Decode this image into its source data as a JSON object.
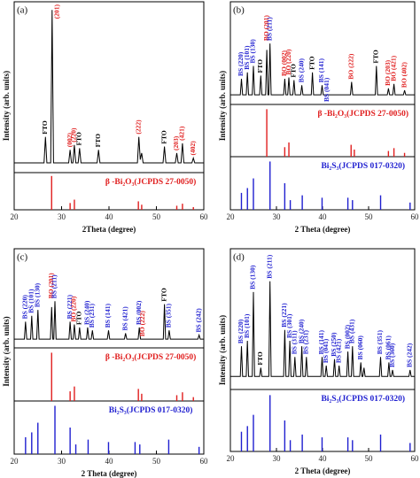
{
  "chart_data": [
    {
      "type": "line",
      "label": "(a)",
      "xlabel": "2Theta (degree)",
      "ylabel": "Intensity (arb. units)",
      "xlim": [
        20,
        60
      ],
      "xticks": [
        20,
        30,
        40,
        50,
        60
      ],
      "ylim": [
        0,
        105
      ],
      "color": "#000000",
      "x": [
        20,
        26.3,
        26.6,
        26.9,
        27.7,
        28.0,
        28.3,
        31.5,
        31.8,
        32.1,
        32.4,
        32.7,
        33.0,
        33.5,
        33.8,
        34.1,
        37.5,
        37.8,
        38.1,
        46.0,
        46.3,
        46.6,
        46.9,
        47.2,
        51.4,
        51.7,
        52.0,
        54.0,
        54.3,
        54.6,
        55.2,
        55.5,
        55.8,
        57.5,
        57.8,
        58.1,
        60
      ],
      "values": [
        6,
        6,
        22,
        6,
        6,
        100,
        6,
        6,
        14,
        6,
        6,
        17,
        6,
        6,
        15,
        6,
        6,
        14,
        6,
        6,
        22,
        8,
        12,
        6,
        6,
        16,
        6,
        6,
        12,
        6,
        6,
        18,
        6,
        6,
        9,
        6,
        6
      ],
      "annotations": [
        {
          "text": "FTO",
          "x": 26.6,
          "color": "#000000"
        },
        {
          "text": "(201)",
          "x": 28.0,
          "color": "#e01e1e"
        },
        {
          "text": "(002)",
          "x": 31.8,
          "color": "#e01e1e"
        },
        {
          "text": "(220)",
          "x": 32.7,
          "color": "#e01e1e"
        },
        {
          "text": "FTO",
          "x": 33.8,
          "color": "#000000"
        },
        {
          "text": "FTO",
          "x": 37.8,
          "color": "#000000"
        },
        {
          "text": "(222)",
          "x": 46.3,
          "color": "#e01e1e"
        },
        {
          "text": "FTO",
          "x": 51.7,
          "color": "#000000"
        },
        {
          "text": "(203)",
          "x": 54.3,
          "color": "#e01e1e"
        },
        {
          "text": "(421)",
          "x": 55.5,
          "color": "#e01e1e"
        },
        {
          "text": "(402)",
          "x": 57.8,
          "color": "#e01e1e"
        }
      ],
      "references": [
        {
          "label": "β -Bi₂O₃(JCPDS 27-0050)",
          "color": "#e01e1e",
          "ylim": [
            0,
            110
          ],
          "x": [
            27.9,
            31.8,
            32.7,
            46.2,
            46.9,
            54.3,
            55.5,
            57.8
          ],
          "values": [
            100,
            20,
            30,
            25,
            15,
            12,
            18,
            8
          ]
        }
      ]
    },
    {
      "type": "line",
      "label": "(b)",
      "xlabel": "2 Theta (degree)",
      "ylabel": "Intensity (arb. units)",
      "xlim": [
        20,
        60
      ],
      "xticks": [
        20,
        30,
        40,
        50,
        60
      ],
      "ylim": [
        0,
        160
      ],
      "color": "#000000",
      "x": [
        20,
        22.15,
        22.4,
        22.65,
        23.45,
        23.7,
        23.95,
        24.75,
        25.0,
        25.25,
        26.35,
        26.6,
        26.85,
        27.65,
        27.9,
        28.15,
        28.35,
        28.6,
        28.85,
        31.55,
        31.8,
        32.05,
        32.45,
        32.7,
        32.95,
        33.55,
        33.8,
        34.05,
        35.25,
        35.5,
        35.75,
        37.55,
        37.8,
        38.05,
        39.65,
        39.9,
        40.15,
        46.05,
        46.3,
        46.55,
        51.45,
        51.7,
        51.95,
        54.05,
        54.3,
        54.55,
        55.25,
        55.5,
        55.75,
        57.55,
        57.8,
        58.05,
        60
      ],
      "values": [
        15,
        15,
        40,
        15,
        15,
        50,
        15,
        15,
        60,
        15,
        15,
        45,
        15,
        15,
        85,
        15,
        15,
        95,
        15,
        15,
        40,
        15,
        15,
        42,
        15,
        15,
        38,
        15,
        15,
        30,
        15,
        15,
        50,
        15,
        15,
        30,
        15,
        15,
        35,
        15,
        15,
        60,
        15,
        15,
        25,
        15,
        15,
        32,
        15,
        15,
        22,
        15,
        15
      ],
      "annotations": [
        {
          "text": "BS (220)",
          "x": 22.4,
          "color": "#1f1fd0"
        },
        {
          "text": "BS (101)",
          "x": 23.7,
          "color": "#1f1fd0"
        },
        {
          "text": "BS (130)",
          "x": 25.0,
          "color": "#1f1fd0"
        },
        {
          "text": "FTO",
          "x": 26.6,
          "color": "#000000"
        },
        {
          "text": "BO (201)",
          "x": 27.9,
          "color": "#e01e1e"
        },
        {
          "text": "BS (211)",
          "x": 28.6,
          "color": "#1f1fd0"
        },
        {
          "text": "BO (002)",
          "x": 31.8,
          "color": "#e01e1e"
        },
        {
          "text": "BO (220)",
          "x": 32.7,
          "color": "#e01e1e"
        },
        {
          "text": "FTO",
          "x": 33.8,
          "color": "#000000"
        },
        {
          "text": "BS (240)",
          "x": 35.5,
          "color": "#1f1fd0"
        },
        {
          "text": "FTO",
          "x": 37.8,
          "color": "#000000"
        },
        {
          "text": "BS (141)",
          "x": 39.9,
          "color": "#1f1fd0"
        },
        {
          "text": "BS (041)",
          "x": 41.0,
          "color": "#1f1fd0"
        },
        {
          "text": "BO (222)",
          "x": 46.3,
          "color": "#e01e1e"
        },
        {
          "text": "FTO",
          "x": 51.7,
          "color": "#000000"
        },
        {
          "text": "BO (203)",
          "x": 54.3,
          "color": "#e01e1e"
        },
        {
          "text": "BO (421)",
          "x": 55.5,
          "color": "#e01e1e"
        },
        {
          "text": "BO (402)",
          "x": 57.8,
          "color": "#e01e1e"
        }
      ],
      "references": [
        {
          "label": "β -Bi₂O₃(JCPDS 27-0050)",
          "color": "#e01e1e",
          "ylim": [
            0,
            110
          ],
          "x": [
            27.9,
            31.8,
            32.7,
            46.2,
            46.9,
            54.3,
            55.5,
            57.8
          ],
          "values": [
            100,
            20,
            30,
            25,
            15,
            12,
            18,
            8
          ]
        },
        {
          "label": "Bi₂S₃(JCPDS 017-0320)",
          "color": "#1f1fd0",
          "ylim": [
            0,
            110
          ],
          "x": [
            22.4,
            23.7,
            25.0,
            28.6,
            31.8,
            33.0,
            35.6,
            39.9,
            45.5,
            46.5,
            52.6,
            59.0
          ],
          "values": [
            35,
            45,
            65,
            100,
            55,
            20,
            30,
            25,
            25,
            20,
            30,
            15
          ]
        }
      ]
    },
    {
      "type": "line",
      "label": "(c)",
      "xlabel": "2 Theta (degree)",
      "ylabel": "Intensity (arb. units)",
      "xlim": [
        20,
        60
      ],
      "xticks": [
        20,
        30,
        40,
        50,
        60
      ],
      "ylim": [
        0,
        170
      ],
      "color": "#000000",
      "x": [
        20,
        22.15,
        22.4,
        22.65,
        23.45,
        23.7,
        23.95,
        24.75,
        25.0,
        25.25,
        27.65,
        27.9,
        28.15,
        28.35,
        28.6,
        28.85,
        31.55,
        31.8,
        32.05,
        32.45,
        32.7,
        32.95,
        33.55,
        33.8,
        34.05,
        35.25,
        35.5,
        35.75,
        36.25,
        36.5,
        36.75,
        39.65,
        39.9,
        40.15,
        43.25,
        43.5,
        43.75,
        46.15,
        46.4,
        46.65,
        51.45,
        51.7,
        51.95,
        52.45,
        52.7,
        52.95,
        58.75,
        59.0,
        59.25,
        60
      ],
      "values": [
        15,
        15,
        45,
        15,
        15,
        55,
        15,
        15,
        65,
        15,
        15,
        70,
        15,
        15,
        80,
        15,
        15,
        45,
        15,
        15,
        40,
        15,
        15,
        35,
        15,
        15,
        35,
        15,
        15,
        30,
        15,
        15,
        30,
        15,
        15,
        25,
        15,
        15,
        35,
        15,
        15,
        75,
        15,
        15,
        30,
        15,
        15,
        22,
        15,
        15
      ],
      "annotations": [
        {
          "text": "BS (220)",
          "x": 22.4,
          "color": "#1f1fd0"
        },
        {
          "text": "BS (101)",
          "x": 23.7,
          "color": "#1f1fd0"
        },
        {
          "text": "BS (130)",
          "x": 25.0,
          "color": "#1f1fd0"
        },
        {
          "text": "BO (201)",
          "x": 27.9,
          "color": "#e01e1e"
        },
        {
          "text": "BS (211)",
          "x": 28.6,
          "color": "#1f1fd0"
        },
        {
          "text": "BS (221)",
          "x": 31.8,
          "color": "#1f1fd0"
        },
        {
          "text": "BO (220)",
          "x": 32.7,
          "color": "#e01e1e"
        },
        {
          "text": "FTO",
          "x": 33.8,
          "color": "#000000"
        },
        {
          "text": "BS (240)",
          "x": 35.5,
          "color": "#1f1fd0"
        },
        {
          "text": "BS (231)",
          "x": 36.5,
          "color": "#1f1fd0"
        },
        {
          "text": "BS (141)",
          "x": 39.9,
          "color": "#1f1fd0"
        },
        {
          "text": "BS (421)",
          "x": 43.5,
          "color": "#1f1fd0"
        },
        {
          "text": "BS (002)",
          "x": 46.4,
          "color": "#1f1fd0"
        },
        {
          "text": "BO (222)",
          "x": 47.2,
          "color": "#e01e1e"
        },
        {
          "text": "FTO",
          "x": 51.7,
          "color": "#000000"
        },
        {
          "text": "BS (351)",
          "x": 52.7,
          "color": "#1f1fd0"
        },
        {
          "text": "BS (242)",
          "x": 59.0,
          "color": "#1f1fd0"
        }
      ],
      "references": [
        {
          "label": "β -Bi₂O₃(JCPDS 27-0050)",
          "color": "#e01e1e",
          "ylim": [
            0,
            110
          ],
          "x": [
            27.9,
            31.8,
            32.7,
            46.2,
            46.9,
            54.3,
            55.5,
            57.8
          ],
          "values": [
            100,
            20,
            30,
            25,
            15,
            12,
            18,
            8
          ]
        },
        {
          "label": "Bi₂S₃(JCPDS 017-0320)",
          "color": "#1f1fd0",
          "ylim": [
            0,
            110
          ],
          "x": [
            22.4,
            23.7,
            25.0,
            28.6,
            31.8,
            33.0,
            35.6,
            39.9,
            45.5,
            46.5,
            52.6,
            59.0
          ],
          "values": [
            35,
            45,
            65,
            100,
            55,
            20,
            30,
            25,
            25,
            20,
            30,
            15
          ]
        }
      ]
    },
    {
      "type": "line",
      "label": "(d)",
      "xlabel": "2 Theta (degree)",
      "ylabel": "Intensity (arb. units)",
      "xlim": [
        20,
        60
      ],
      "xticks": [
        20,
        30,
        40,
        50,
        60
      ],
      "ylim": [
        0,
        130
      ],
      "color": "#000000",
      "x": [
        20,
        22.15,
        22.4,
        22.65,
        23.45,
        23.7,
        23.95,
        24.75,
        25.0,
        25.25,
        26.35,
        26.6,
        26.85,
        28.35,
        28.6,
        28.85,
        31.55,
        31.8,
        32.05,
        32.65,
        32.9,
        33.15,
        33.75,
        34.0,
        34.25,
        35.25,
        35.5,
        35.75,
        36.25,
        36.5,
        36.75,
        39.65,
        39.9,
        40.15,
        40.55,
        40.8,
        41.05,
        42.35,
        42.6,
        42.85,
        43.35,
        43.6,
        43.85,
        45.25,
        45.5,
        45.75,
        46.25,
        46.5,
        46.75,
        48.05,
        48.3,
        48.55,
        48.75,
        49.0,
        49.25,
        52.35,
        52.6,
        52.85,
        54.15,
        54.4,
        54.65,
        54.95,
        55.2,
        55.45,
        58.75,
        59.0,
        59.25,
        60
      ],
      "values": [
        12,
        12,
        40,
        12,
        12,
        45,
        12,
        12,
        90,
        12,
        12,
        20,
        12,
        12,
        100,
        12,
        12,
        55,
        12,
        12,
        45,
        12,
        12,
        30,
        12,
        12,
        40,
        12,
        12,
        30,
        12,
        12,
        30,
        12,
        12,
        22,
        12,
        12,
        28,
        12,
        12,
        22,
        12,
        12,
        35,
        12,
        12,
        40,
        12,
        12,
        25,
        12,
        12,
        20,
        12,
        12,
        30,
        12,
        12,
        25,
        12,
        12,
        18,
        12,
        12,
        18,
        12,
        12
      ],
      "annotations": [
        {
          "text": "BS (220)",
          "x": 22.4,
          "color": "#1f1fd0"
        },
        {
          "text": "BS (101)",
          "x": 23.7,
          "color": "#1f1fd0"
        },
        {
          "text": "BS (130)",
          "x": 25.0,
          "color": "#1f1fd0"
        },
        {
          "text": "FTO",
          "x": 26.6,
          "color": "#000000"
        },
        {
          "text": "BS (211)",
          "x": 28.6,
          "color": "#1f1fd0"
        },
        {
          "text": "BS (221)",
          "x": 31.8,
          "color": "#1f1fd0"
        },
        {
          "text": "BS (301)",
          "x": 32.9,
          "color": "#1f1fd0"
        },
        {
          "text": "BS (311)",
          "x": 34.0,
          "color": "#1f1fd0"
        },
        {
          "text": "BS (240)",
          "x": 35.5,
          "color": "#1f1fd0"
        },
        {
          "text": "BS (231)",
          "x": 36.5,
          "color": "#1f1fd0"
        },
        {
          "text": "BS (141)",
          "x": 39.9,
          "color": "#1f1fd0"
        },
        {
          "text": "BS (041)",
          "x": 40.8,
          "color": "#1f1fd0"
        },
        {
          "text": "BS (250)",
          "x": 42.6,
          "color": "#1f1fd0"
        },
        {
          "text": "BS (421)",
          "x": 43.6,
          "color": "#1f1fd0"
        },
        {
          "text": "BS (002)",
          "x": 45.5,
          "color": "#1f1fd0"
        },
        {
          "text": "BS (431)",
          "x": 46.5,
          "color": "#1f1fd0"
        },
        {
          "text": "BS (060)",
          "x": 48.3,
          "color": "#1f1fd0"
        },
        {
          "text": "BS (351)",
          "x": 52.6,
          "color": "#1f1fd0"
        },
        {
          "text": "BS (061)",
          "x": 54.4,
          "color": "#1f1fd0"
        },
        {
          "text": "BS (360)",
          "x": 55.2,
          "color": "#1f1fd0"
        },
        {
          "text": "BS (242)",
          "x": 59.0,
          "color": "#1f1fd0"
        }
      ],
      "references": [
        {
          "label": "Bi₂S₃(JCPDS 017-0320)",
          "color": "#1f1fd0",
          "ylim": [
            0,
            110
          ],
          "x": [
            22.4,
            23.7,
            25.0,
            28.6,
            31.8,
            33.0,
            35.6,
            39.9,
            45.5,
            46.5,
            52.6,
            59.0
          ],
          "values": [
            35,
            45,
            65,
            100,
            55,
            20,
            30,
            25,
            25,
            20,
            30,
            15
          ]
        }
      ]
    }
  ]
}
